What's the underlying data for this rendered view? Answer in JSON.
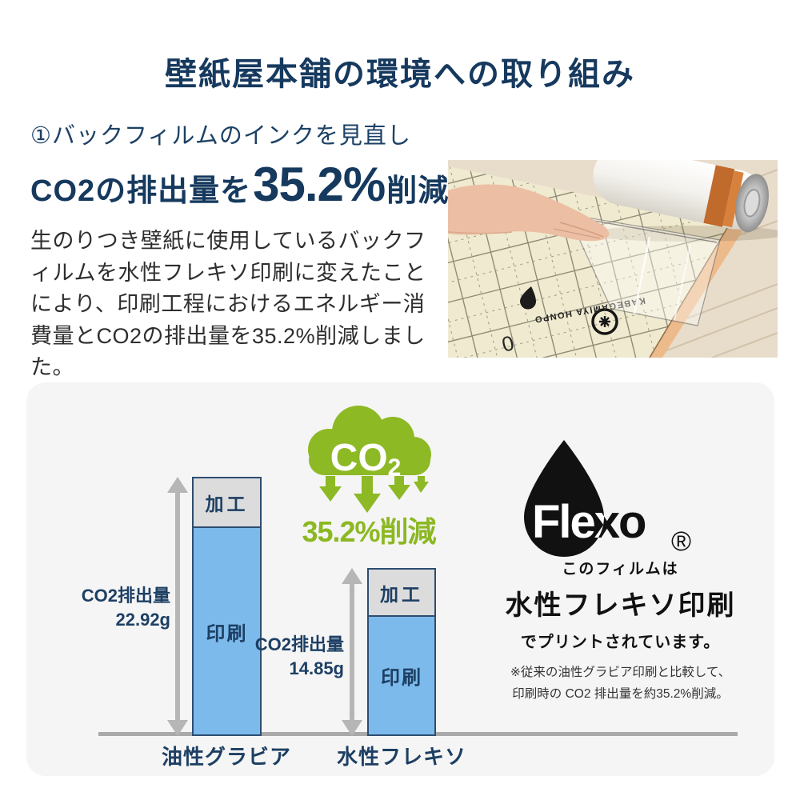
{
  "header": {
    "title": "壁紙屋本舗の環境への取り組み"
  },
  "intro": {
    "heading": "①バックフィルムのインクを見直し",
    "lead_prefix": "CO2の排出量を",
    "lead_highlight": "35.2%",
    "lead_suffix": "削減",
    "body": "生のりつき壁紙に使用しているバックフィルムを水性フレキソ印刷に変えたことにより、印刷工程におけるエネルギー消費量とCO2の排出量を35.2%削減しました。"
  },
  "photo": {
    "stamp_text": "KABEGAMIYA HONPO",
    "scale_mark": "0"
  },
  "card": {
    "cloud_label": "CO",
    "cloud_sub": "2",
    "reduction_text": "35.2%削減",
    "flexo_brand": "Flexo",
    "flexo_registered": "®",
    "film_line1": "このフィルムは",
    "film_line2": "水性フレキソ印刷",
    "film_line3": "でプリントされています。",
    "note_line1": "※従来の油性グラビア印刷と比較して、",
    "note_line2": "印刷時の CO2 排出量を約35.2%削減。"
  },
  "chart_data": {
    "type": "bar",
    "stacked": true,
    "categories": [
      "油性グラビア",
      "水性フレキソ"
    ],
    "series": [
      {
        "name": "加工",
        "values": [
          4.4,
          4.2
        ],
        "color": "#dcdcdc"
      },
      {
        "name": "印刷",
        "values": [
          18.52,
          10.65
        ],
        "color": "#7cbaec"
      }
    ],
    "totals": [
      {
        "label": "CO2排出量",
        "value": "22.92g",
        "grams": 22.92
      },
      {
        "label": "CO2排出量",
        "value": "14.85g",
        "grams": 14.85
      }
    ],
    "unit": "g",
    "ylim": [
      0,
      24
    ],
    "legend": false,
    "grid": false
  }
}
